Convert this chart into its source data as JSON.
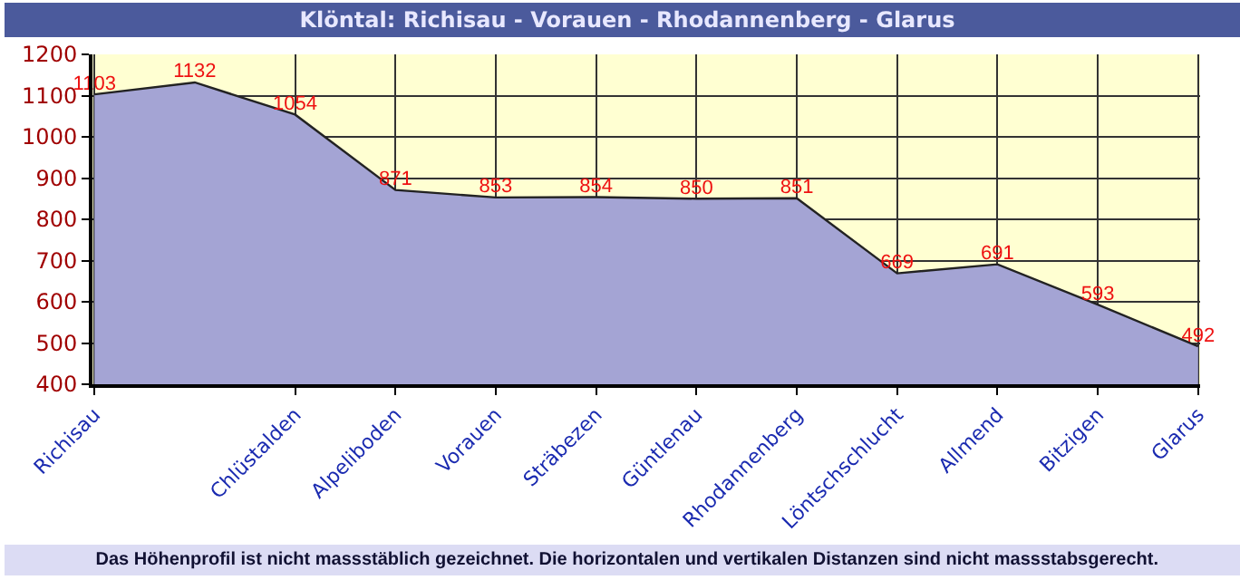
{
  "chart_data": {
    "type": "area",
    "title": "Klöntal: Richisau - Vorauen - Rhodannenberg - Glarus",
    "categories": [
      "Richisau",
      null,
      "Chlüstalden",
      "Alpeliboden",
      "Vorauen",
      "Sträbezen",
      "Güntlenau",
      "Rhodannenberg",
      "Löntschschlucht",
      "Allmend",
      "Bitzigen",
      "Glarus"
    ],
    "series": [
      {
        "color": "#a4a4d4",
        "values": [
          1103,
          1132,
          1054,
          871,
          853,
          854,
          850,
          851,
          669,
          691,
          593,
          492
        ]
      }
    ],
    "ylim": [
      400,
      1200
    ],
    "yticks": [
      400,
      500,
      600,
      700,
      800,
      900,
      1000,
      1100,
      1200
    ],
    "grid": true,
    "data_labels": true,
    "annotations": [
      "Das Höhenprofil ist nicht massstäblich gezeichnet. Die horizontalen und vertikalen Distanzen sind nicht massstabsgerecht."
    ]
  }
}
